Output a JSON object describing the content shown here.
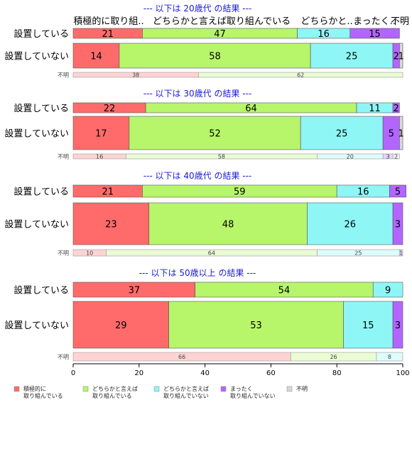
{
  "colors": {
    "積極的に取り組んでいる": "#ff6b6b",
    "どちらかと言えば取り組んでいる": "#b7f56b",
    "どちらかと言えば取り組んでいない": "#8ff6f6",
    "まったく取り組んでいない": "#b266ff",
    "不明": "#d8d8d8"
  },
  "header_labels": [
    "積極的に取り組..",
    "どちらかと言えば取り組んでいる",
    "どちらかと..",
    "まったく..",
    "不明"
  ],
  "chart_data": {
    "type": "bar",
    "orientation": "horizontal",
    "stacked": true,
    "xlim": [
      0,
      100
    ],
    "xticks": [
      0,
      20,
      40,
      60,
      80,
      100
    ],
    "legend": {
      "placement": "bottom",
      "entries": [
        {
          "key": "積極的に取り組んでいる",
          "lines": [
            "積極的に",
            "取り組んでいる"
          ]
        },
        {
          "key": "どちらかと言えば取り組んでいる",
          "lines": [
            "どちらかと言えば",
            "取り組んでいる"
          ]
        },
        {
          "key": "どちらかと言えば取り組んでいない",
          "lines": [
            "どちらかと言えば",
            "取り組んでいない"
          ]
        },
        {
          "key": "まったく取り組んでいない",
          "lines": [
            "まったく",
            "取り組んでいない"
          ]
        },
        {
          "key": "不明",
          "lines": [
            "不明"
          ]
        }
      ]
    },
    "groups": [
      {
        "title": "--- 以下は 20歳代 の結果 ---",
        "rows": [
          {
            "label": "設置している",
            "size": "lg",
            "values": [
              21,
              47,
              16,
              15,
              0
            ],
            "keys": [
              "積極的に取り組んでいる",
              "どちらかと言えば取り組んでいる",
              "どちらかと言えば取り組んでいない",
              "まったく取り組んでいない",
              "不明"
            ]
          },
          {
            "label": "設置していない",
            "size": "lg",
            "values": [
              14,
              58,
              25,
              2,
              1
            ],
            "keys": [
              "積極的に取り組んでいる",
              "どちらかと言えば取り組んでいる",
              "どちらかと言えば取り組んでいない",
              "まったく取り組んでいない",
              "不明"
            ]
          },
          {
            "label": "不明",
            "size": "sm",
            "values": [
              38,
              62
            ],
            "keys": [
              "積極的に取り組んでいる",
              "どちらかと言えば取り組んでいる"
            ]
          }
        ]
      },
      {
        "title": "--- 以下は 30歳代 の結果 ---",
        "rows": [
          {
            "label": "設置している",
            "size": "lg",
            "values": [
              22,
              64,
              11,
              2,
              0
            ],
            "keys": [
              "積極的に取り組んでいる",
              "どちらかと言えば取り組んでいる",
              "どちらかと言えば取り組んでいない",
              "まったく取り組んでいない",
              "不明"
            ]
          },
          {
            "label": "設置していない",
            "size": "lg",
            "values": [
              17,
              52,
              25,
              5,
              1
            ],
            "keys": [
              "積極的に取り組んでいる",
              "どちらかと言えば取り組んでいる",
              "どちらかと言えば取り組んでいない",
              "まったく取り組んでいない",
              "不明"
            ]
          },
          {
            "label": "不明",
            "size": "sm",
            "values": [
              16,
              58,
              20,
              3,
              2
            ],
            "keys": [
              "積極的に取り組んでいる",
              "どちらかと言えば取り組んでいる",
              "どちらかと言えば取り組んでいない",
              "まったく取り組んでいない",
              "不明"
            ]
          }
        ]
      },
      {
        "title": "--- 以下は 40歳代 の結果 ---",
        "rows": [
          {
            "label": "設置している",
            "size": "lg",
            "values": [
              21,
              59,
              16,
              5,
              0
            ],
            "keys": [
              "積極的に取り組んでいる",
              "どちらかと言えば取り組んでいる",
              "どちらかと言えば取り組んでいない",
              "まったく取り組んでいない",
              "不明"
            ]
          },
          {
            "label": "設置していない",
            "size": "lg",
            "values": [
              23,
              48,
              26,
              3,
              0
            ],
            "keys": [
              "積極的に取り組んでいる",
              "どちらかと言えば取り組んでいる",
              "どちらかと言えば取り組んでいない",
              "まったく取り組んでいない",
              "不明"
            ]
          },
          {
            "label": "不明",
            "size": "sm",
            "values": [
              10,
              64,
              25,
              1
            ],
            "keys": [
              "積極的に取り組んでいる",
              "どちらかと言えば取り組んでいる",
              "どちらかと言えば取り組んでいない",
              "まったく取り組んでいない"
            ]
          }
        ]
      },
      {
        "title": "--- 以下は 50歳以上 の結果 ---",
        "rows": [
          {
            "label": "設置している",
            "size": "lg",
            "values": [
              37,
              54,
              9,
              0,
              0
            ],
            "keys": [
              "積極的に取り組んでいる",
              "どちらかと言えば取り組んでいる",
              "どちらかと言えば取り組んでいない",
              "まったく取り組んでいない",
              "不明"
            ]
          },
          {
            "label": "設置していない",
            "size": "lg",
            "values": [
              29,
              53,
              15,
              3,
              0
            ],
            "keys": [
              "積極的に取り組んでいる",
              "どちらかと言えば取り組んでいる",
              "どちらかと言えば取り組んでいない",
              "まったく取り組んでいない",
              "不明"
            ]
          },
          {
            "label": "不明",
            "size": "sm",
            "values": [
              66,
              26,
              8
            ],
            "keys": [
              "積極的に取り組んでいる",
              "どちらかと言えば取り組んでいる",
              "どちらかと言えば取り組んでいない"
            ]
          }
        ]
      }
    ]
  }
}
